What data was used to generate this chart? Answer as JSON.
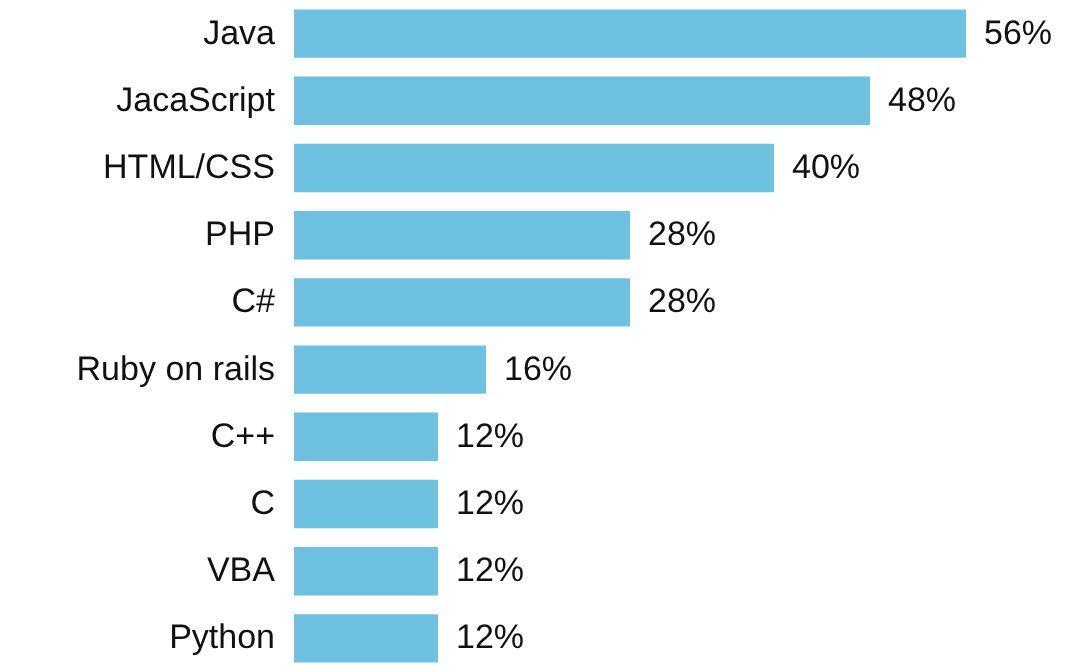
{
  "chart_data": {
    "type": "bar",
    "orientation": "horizontal",
    "data_labels": true,
    "categories": [
      "Java",
      "JacaScript",
      "HTML/CSS",
      "PHP",
      "C#",
      "Ruby on rails",
      "C++",
      "C",
      "VBA",
      "Python"
    ],
    "values": [
      56,
      48,
      40,
      28,
      28,
      16,
      12,
      12,
      12,
      12
    ],
    "value_labels": [
      "56%",
      "48%",
      "40%",
      "28%",
      "28%",
      "16%",
      "12%",
      "12%",
      "12%",
      "12%"
    ],
    "color": "#6ec1e0"
  }
}
